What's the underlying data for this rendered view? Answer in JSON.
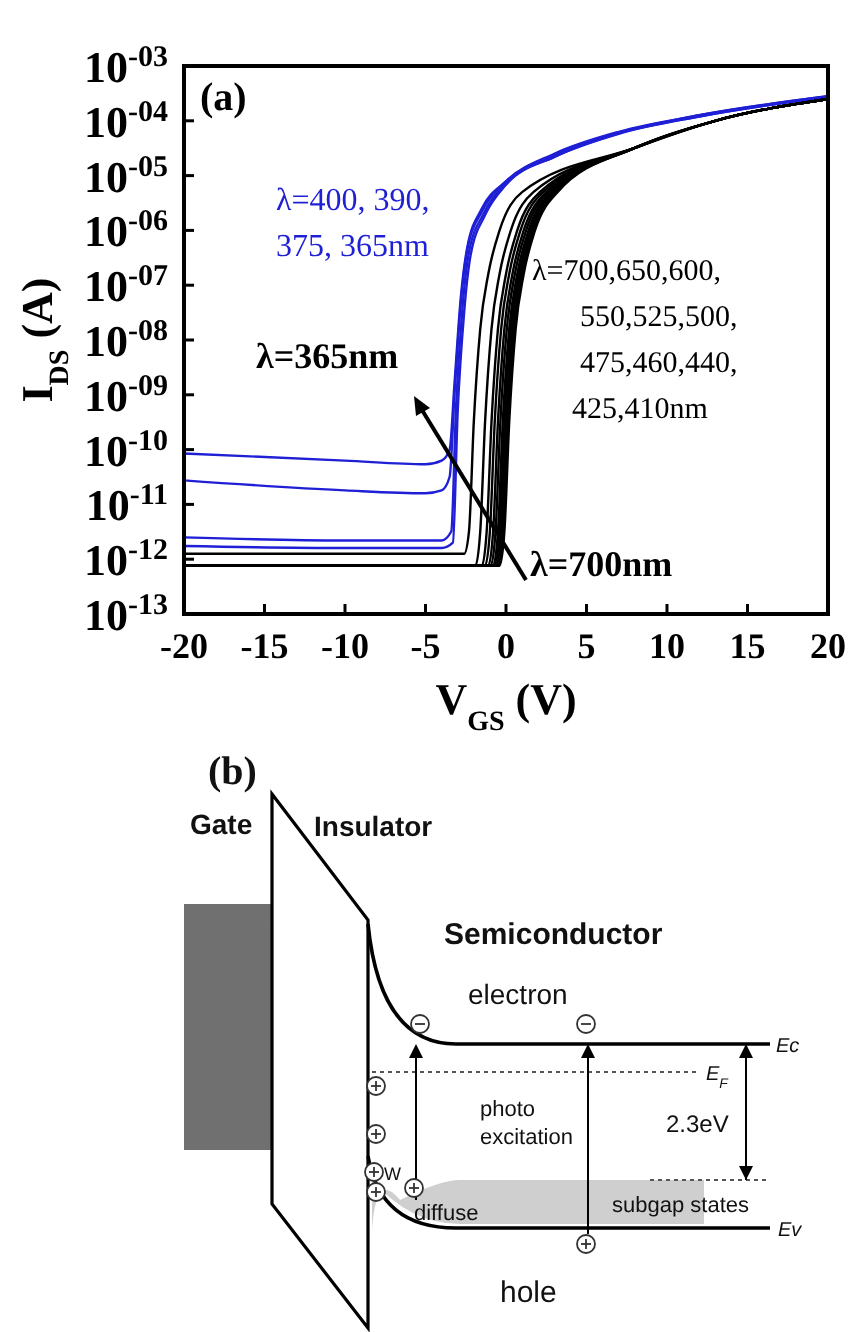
{
  "chart_data": [
    {
      "type": "line",
      "log": "y",
      "xlabel": "V$_{GS}$ (V)",
      "ylabel": "I$_{DS}$ (A)",
      "xlim": [
        -20,
        20
      ],
      "xticks": [
        -20,
        -15,
        -10,
        -5,
        0,
        5,
        10,
        15,
        20
      ],
      "ylim": [
        1e-13,
        0.001
      ],
      "yticks": [
        {
          "value": 1e-13,
          "label": "10$^{-13}$"
        },
        {
          "value": 1e-12,
          "label": "10$^{-12}$"
        },
        {
          "value": 1e-11,
          "label": "10$^{-11}$"
        },
        {
          "value": 1e-10,
          "label": "10$^{-10}$"
        },
        {
          "value": 1e-09,
          "label": "10$^{-09}$"
        },
        {
          "value": 1e-08,
          "label": "10$^{-08}$"
        },
        {
          "value": 1e-07,
          "label": "10$^{-07}$"
        },
        {
          "value": 1e-06,
          "label": "10$^{-06}$"
        },
        {
          "value": 1e-05,
          "label": "10$^{-05}$"
        },
        {
          "value": 0.0001,
          "label": "10$^{-04}$"
        },
        {
          "value": 0.001,
          "label": "10$^{-03}$"
        }
      ],
      "annotations": [
        "(a)",
        "λ=400, 390,\n375, 365nm",
        "λ=700,650,600,\n550,525,500,\n475,460,440,\n425,410nm",
        "λ=365nm",
        "λ=700nm"
      ],
      "series": [
        {
          "color": "#1f1fd6",
          "x": [
            -20,
            -10,
            -5,
            -4,
            -3.5,
            -3.2,
            -2.8,
            -2.4,
            -1.5,
            0,
            3,
            7,
            12,
            20
          ],
          "values": [
            8.5e-11,
            6.3e-11,
            5.4e-11,
            6.3e-11,
            1e-10,
            1.6e-09,
            6.3e-08,
            5e-07,
            2.5e-06,
            7.9e-06,
            2.5e-05,
            6.3e-05,
            0.000126,
            0.00028
          ]
        },
        {
          "color": "#1f1fd6",
          "x": [
            -20,
            -10,
            -5,
            -4,
            -3.5,
            -3.2,
            -2.8,
            -2.4,
            -1.5,
            0,
            3,
            7,
            12,
            20
          ],
          "values": [
            2.75e-11,
            1.8e-11,
            1.6e-11,
            1.8e-11,
            3.2e-11,
            1e-09,
            5e-08,
            4.5e-07,
            2.2e-06,
            7.6e-06,
            2.4e-05,
            6e-05,
            0.000126,
            0.00028
          ]
        },
        {
          "color": "#1f1fd6",
          "x": [
            -20,
            -10,
            -5,
            -4,
            -3.4,
            -3.1,
            -2.7,
            -2.3,
            -1.4,
            0,
            3,
            7,
            12,
            20
          ],
          "values": [
            2.5e-12,
            2.2e-12,
            2.2e-12,
            2.2e-12,
            3.2e-12,
            6.3e-10,
            4e-08,
            4e-07,
            2e-06,
            7.1e-06,
            2.2e-05,
            5.9e-05,
            0.00012,
            0.000275
          ]
        },
        {
          "color": "#1f1fd6",
          "x": [
            -20,
            -10,
            -5,
            -4,
            -3.3,
            -3,
            -2.6,
            -2.2,
            -1.3,
            0,
            3,
            7,
            12,
            20
          ],
          "values": [
            1.74e-12,
            1.6e-12,
            1.6e-12,
            1.6e-12,
            2e-12,
            5e-10,
            3.2e-08,
            3.5e-07,
            1.9e-06,
            6.8e-06,
            2.2e-05,
            5.8e-05,
            0.00012,
            0.000275
          ]
        },
        {
          "color": "#000000",
          "x": [
            -20,
            -5,
            -2.6,
            -2.3,
            -2,
            -1.6,
            -1.1,
            -0.4,
            1,
            8,
            13,
            20
          ],
          "values": [
            1.26e-12,
            1.26e-12,
            1.26e-12,
            3.2e-12,
            3.2e-10,
            1.6e-08,
            1.6e-07,
            1e-06,
            5e-06,
            3.2e-05,
            0.0001,
            0.00025
          ]
        },
        {
          "color": "#000000",
          "x": [
            -20,
            -5,
            -1.9,
            -1.6,
            -1.3,
            -0.9,
            -0.4,
            0.3,
            1.7,
            8,
            13,
            20
          ],
          "values": [
            7.6e-13,
            7.6e-13,
            7.6e-13,
            3.2e-12,
            3.2e-10,
            1.6e-08,
            1.6e-07,
            1e-06,
            5e-06,
            3.2e-05,
            0.0001,
            0.00025
          ]
        },
        {
          "color": "#000000",
          "x": [
            -20,
            -5,
            -1.5,
            -1.2,
            -0.9,
            -0.5,
            0,
            0.7,
            2.1,
            8,
            13,
            20
          ],
          "values": [
            7.6e-13,
            7.6e-13,
            7.6e-13,
            3.2e-12,
            3.2e-10,
            1.6e-08,
            1.6e-07,
            1e-06,
            5e-06,
            3.2e-05,
            0.0001,
            0.00025
          ]
        },
        {
          "color": "#000000",
          "x": [
            -20,
            -5,
            -1.3,
            -1,
            -0.7,
            -0.3,
            0.2,
            0.9,
            2.3,
            8,
            13,
            20
          ],
          "values": [
            7.6e-13,
            7.6e-13,
            7.6e-13,
            3.2e-12,
            3.2e-10,
            1.6e-08,
            1.6e-07,
            1e-06,
            5e-06,
            3.2e-05,
            0.0001,
            0.00025
          ]
        },
        {
          "color": "#000000",
          "x": [
            -20,
            -5,
            -1.1,
            -0.8,
            -0.5,
            -0.1,
            0.4,
            1.1,
            2.5,
            8,
            13,
            20
          ],
          "values": [
            7.6e-13,
            7.6e-13,
            7.6e-13,
            3.2e-12,
            3.2e-10,
            1.6e-08,
            1.6e-07,
            1e-06,
            5e-06,
            3.2e-05,
            0.0001,
            0.00025
          ]
        },
        {
          "color": "#000000",
          "x": [
            -20,
            -5,
            -0.95,
            -0.65,
            -0.35,
            0.05,
            0.55,
            1.25,
            2.65,
            8,
            13,
            20
          ],
          "values": [
            7.6e-13,
            7.6e-13,
            7.6e-13,
            3.2e-12,
            3.2e-10,
            1.6e-08,
            1.6e-07,
            1e-06,
            5e-06,
            3.2e-05,
            0.0001,
            0.00025
          ]
        },
        {
          "color": "#000000",
          "x": [
            -20,
            -5,
            -0.8,
            -0.5,
            -0.2,
            0.2,
            0.7,
            1.4,
            2.8,
            8,
            13,
            20
          ],
          "values": [
            7.6e-13,
            7.6e-13,
            7.6e-13,
            3.2e-12,
            3.2e-10,
            1.6e-08,
            1.6e-07,
            1e-06,
            5e-06,
            3.2e-05,
            0.0001,
            0.00025
          ]
        },
        {
          "color": "#000000",
          "x": [
            -20,
            -5,
            -0.7,
            -0.4,
            -0.1,
            0.3,
            0.8,
            1.5,
            2.9,
            8,
            13,
            20
          ],
          "values": [
            7.6e-13,
            7.6e-13,
            7.6e-13,
            3.2e-12,
            3.2e-10,
            1.6e-08,
            1.6e-07,
            1e-06,
            5e-06,
            3.2e-05,
            0.0001,
            0.00025
          ]
        },
        {
          "color": "#000000",
          "x": [
            -20,
            -5,
            -0.6,
            -0.3,
            0,
            0.4,
            0.9,
            1.6,
            3,
            8,
            13,
            20
          ],
          "values": [
            7.6e-13,
            7.6e-13,
            7.6e-13,
            3.2e-12,
            3.2e-10,
            1.6e-08,
            1.6e-07,
            1e-06,
            5e-06,
            3.2e-05,
            0.0001,
            0.00025
          ]
        },
        {
          "color": "#000000",
          "x": [
            -20,
            -5,
            -0.5,
            -0.2,
            0.1,
            0.5,
            1,
            1.7,
            3.1,
            8,
            13,
            20
          ],
          "values": [
            7.6e-13,
            7.6e-13,
            7.6e-13,
            3.2e-12,
            3.2e-10,
            1.6e-08,
            1.6e-07,
            1e-06,
            5e-06,
            3.2e-05,
            0.0001,
            0.00025
          ]
        },
        {
          "color": "#000000",
          "x": [
            -20,
            -5,
            -0.4,
            -0.1,
            0.2,
            0.6,
            1.1,
            1.8,
            3.2,
            8,
            13,
            20
          ],
          "values": [
            7.6e-13,
            7.6e-13,
            7.6e-13,
            3.2e-12,
            3.2e-10,
            1.6e-08,
            1.6e-07,
            1e-06,
            5e-06,
            3.2e-05,
            0.0001,
            0.00025
          ]
        }
      ]
    },
    {
      "type": "other",
      "annotations": [
        "(b)",
        "Gate",
        "Insulator",
        "Semiconductor",
        "electron",
        "photo\nexcitation",
        "2.3eV",
        "diffuse",
        "subgap states",
        "hole",
        "W",
        "Ec",
        "E$_{F}$",
        "Ev"
      ]
    }
  ]
}
